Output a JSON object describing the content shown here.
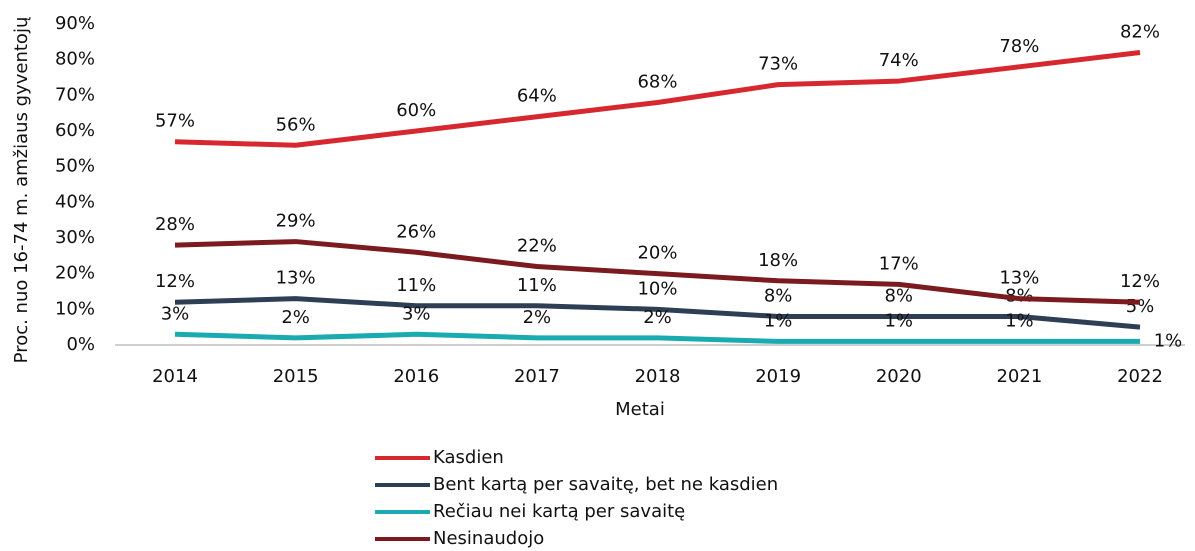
{
  "chart_data": {
    "type": "line",
    "x_label": "Metai",
    "y_label": "Proc. nuo 16-74 m. amžiaus gyventojų",
    "categories": [
      "2014",
      "2015",
      "2016",
      "2017",
      "2018",
      "2019",
      "2020",
      "2021",
      "2022"
    ],
    "series": [
      {
        "name": "Kasdien",
        "color": "#d7282f",
        "values": [
          57,
          56,
          60,
          64,
          68,
          73,
          74,
          78,
          82
        ],
        "value_labels": [
          "57%",
          "56%",
          "60%",
          "64%",
          "68%",
          "73%",
          "74%",
          "78%",
          "82%"
        ]
      },
      {
        "name": "Bent kartą per savaitę, bet ne kasdien",
        "color": "#2e3f55",
        "values": [
          12,
          13,
          11,
          11,
          10,
          8,
          8,
          8,
          5
        ],
        "value_labels": [
          "12%",
          "13%",
          "11%",
          "11%",
          "10%",
          "8%",
          "8%",
          "8%",
          "5%"
        ]
      },
      {
        "name": "Rečiau nei kartą per savaitę",
        "color": "#1aabb0",
        "values": [
          3,
          2,
          3,
          2,
          2,
          1,
          1,
          1,
          1
        ],
        "value_labels": [
          "3%",
          "2%",
          "3%",
          "2%",
          "2%",
          "1%",
          "1%",
          "1%",
          "1%"
        ]
      },
      {
        "name": "Nesinaudojo",
        "color": "#7b1a1f",
        "values": [
          28,
          29,
          26,
          22,
          20,
          18,
          17,
          13,
          12
        ],
        "value_labels": [
          "28%",
          "29%",
          "26%",
          "22%",
          "20%",
          "18%",
          "17%",
          "13%",
          "12%"
        ]
      }
    ],
    "ylim": [
      0,
      90
    ],
    "yticks": [
      {
        "value": 0,
        "label": "0%"
      },
      {
        "value": 10,
        "label": "10%"
      },
      {
        "value": 20,
        "label": "20%"
      },
      {
        "value": 30,
        "label": "30%"
      },
      {
        "value": 40,
        "label": "40%"
      },
      {
        "value": 50,
        "label": "50%"
      },
      {
        "value": 60,
        "label": "60%"
      },
      {
        "value": 70,
        "label": "70%"
      },
      {
        "value": 80,
        "label": "80%"
      },
      {
        "value": 90,
        "label": "90%"
      }
    ],
    "grid": false,
    "legend": "bottom"
  }
}
